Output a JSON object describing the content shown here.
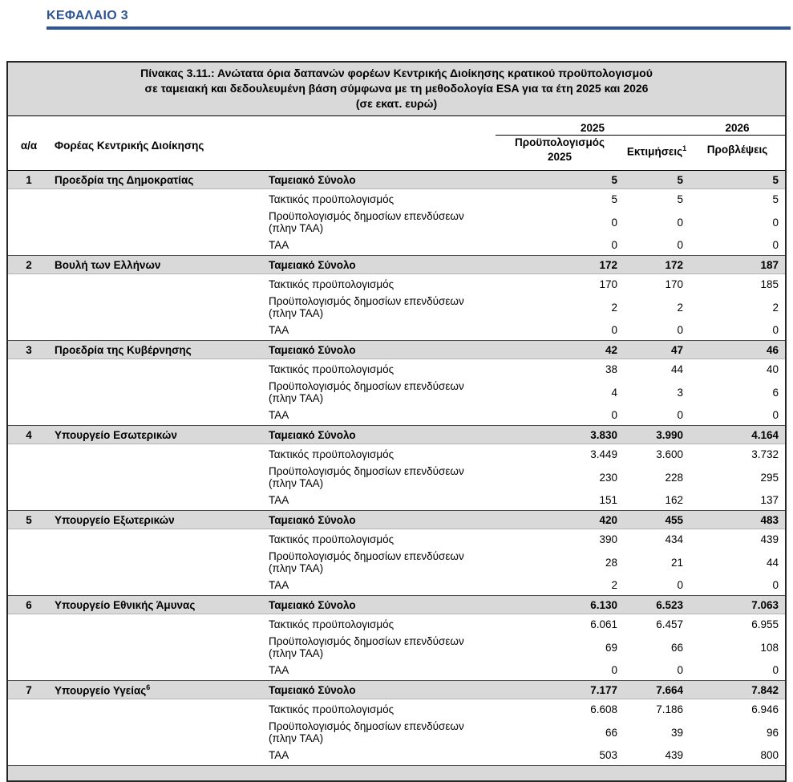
{
  "colors": {
    "accent_blue": "#2F5496",
    "row_gray": "#D9D9D9",
    "border_dark": "#262626"
  },
  "page": {
    "chapter_heading": "ΚΕΦΑΛΑΙΟ 3"
  },
  "table": {
    "title_lines": [
      "Πίνακας 3.11.: Ανώτατα όρια δαπανών φορέων Κεντρικής Διοίκησης κρατικού προϋπολογισμού",
      "σε ταμειακή και δεδουλευμένη βάση σύμφωνα με τη μεθοδολογία ESA για τα έτη 2025 και 2026",
      "(σε εκατ. ευρώ)"
    ],
    "columns": {
      "num": "α/α",
      "entity": "Φορέας Κεντρικής Διοίκησης",
      "year_2025": "2025",
      "year_2026": "2026",
      "budget": "Προϋπολογισμός\n2025",
      "estimates": "Εκτιμήσεις",
      "estimates_sup": "1",
      "projections": "Προβλέψεις"
    },
    "categories": [
      "Ταμειακό Σύνολο",
      "Τακτικός προϋπολογισμός",
      "Προϋπολογισμός δημοσίων επενδύσεων\n(πλην ΤΑΑ)",
      "ΤΑΑ"
    ],
    "groups": [
      {
        "num": "1",
        "name": "Προεδρία της Δημοκρατίας",
        "name_sup": "",
        "rows": [
          [
            "5",
            "5",
            "5"
          ],
          [
            "5",
            "5",
            "5"
          ],
          [
            "0",
            "0",
            "0"
          ],
          [
            "0",
            "0",
            "0"
          ]
        ]
      },
      {
        "num": "2",
        "name": "Βουλή των Ελλήνων",
        "name_sup": "",
        "rows": [
          [
            "172",
            "172",
            "187"
          ],
          [
            "170",
            "170",
            "185"
          ],
          [
            "2",
            "2",
            "2"
          ],
          [
            "0",
            "0",
            "0"
          ]
        ]
      },
      {
        "num": "3",
        "name": "Προεδρία της Κυβέρνησης",
        "name_sup": "",
        "rows": [
          [
            "42",
            "47",
            "46"
          ],
          [
            "38",
            "44",
            "40"
          ],
          [
            "4",
            "3",
            "6"
          ],
          [
            "0",
            "0",
            "0"
          ]
        ]
      },
      {
        "num": "4",
        "name": "Υπουργείο Εσωτερικών",
        "name_sup": "",
        "rows": [
          [
            "3.830",
            "3.990",
            "4.164"
          ],
          [
            "3.449",
            "3.600",
            "3.732"
          ],
          [
            "230",
            "228",
            "295"
          ],
          [
            "151",
            "162",
            "137"
          ]
        ]
      },
      {
        "num": "5",
        "name": "Υπουργείο Εξωτερικών",
        "name_sup": "",
        "rows": [
          [
            "420",
            "455",
            "483"
          ],
          [
            "390",
            "434",
            "439"
          ],
          [
            "28",
            "21",
            "44"
          ],
          [
            "2",
            "0",
            "0"
          ]
        ]
      },
      {
        "num": "6",
        "name": "Υπουργείο Εθνικής Άμυνας",
        "name_sup": "",
        "rows": [
          [
            "6.130",
            "6.523",
            "7.063"
          ],
          [
            "6.061",
            "6.457",
            "6.955"
          ],
          [
            "69",
            "66",
            "108"
          ],
          [
            "0",
            "0",
            "0"
          ]
        ]
      },
      {
        "num": "7",
        "name": "Υπουργείο Υγείας",
        "name_sup": "6",
        "rows": [
          [
            "7.177",
            "7.664",
            "7.842"
          ],
          [
            "6.608",
            "7.186",
            "6.946"
          ],
          [
            "66",
            "39",
            "96"
          ],
          [
            "503",
            "439",
            "800"
          ]
        ]
      }
    ],
    "partial_row_visible": true
  }
}
